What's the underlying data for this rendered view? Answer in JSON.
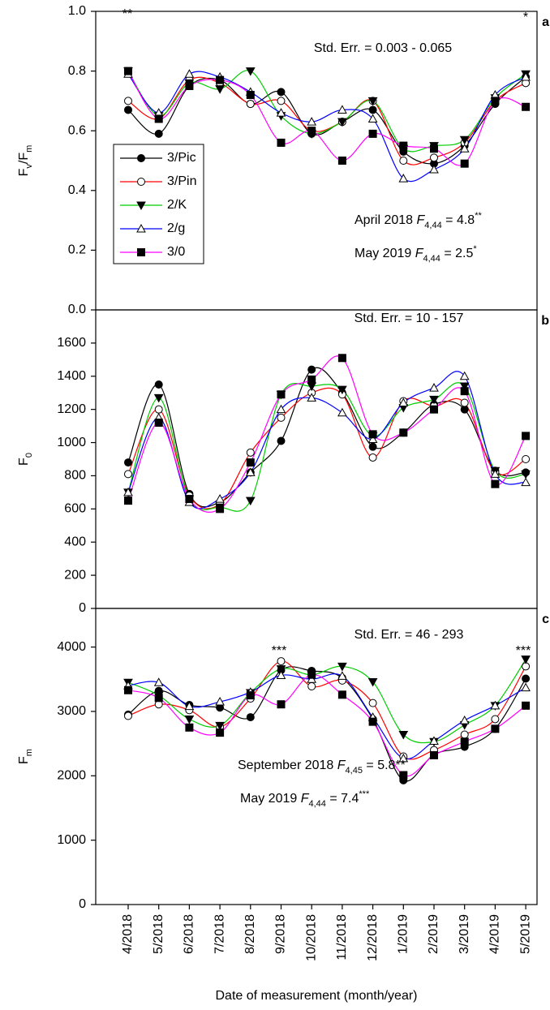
{
  "chart_data": [
    {
      "type": "line",
      "panel_label": "a",
      "ylabel": [
        {
          "text": "F"
        },
        {
          "text": "v",
          "sub": true
        },
        {
          "text": "/F"
        },
        {
          "text": "m",
          "sub": true
        }
      ],
      "ylim": [
        0,
        1
      ],
      "yticks": [
        {
          "value": 0,
          "label": "0.0"
        },
        {
          "value": 0.2,
          "label": "0.2"
        },
        {
          "value": 0.4,
          "label": "0.4"
        },
        {
          "value": 0.6,
          "label": "0.6"
        },
        {
          "value": 0.8,
          "label": "0.8"
        },
        {
          "value": 1,
          "label": "1.0"
        }
      ],
      "legend": "center left",
      "annotations": [
        {
          "parts": [
            {
              "text": "Std. Err. = 0.003 - 0.065"
            }
          ]
        },
        {
          "parts": [
            {
              "text": "April 2018 "
            },
            {
              "text": "F",
              "italic": true
            },
            {
              "text": "4,44",
              "sub": true
            },
            {
              "text": " = 4.8"
            },
            {
              "text": "**",
              "sup": true
            }
          ]
        },
        {
          "parts": [
            {
              "text": "May 2019 "
            },
            {
              "text": "F",
              "italic": true
            },
            {
              "text": "4,44",
              "sub": true
            },
            {
              "text": " = 2.5"
            },
            {
              "text": "*",
              "sup": true
            }
          ]
        },
        {
          "parts": [
            {
              "text": "**"
            }
          ]
        },
        {
          "parts": [
            {
              "text": "*"
            }
          ]
        }
      ],
      "series": [
        {
          "name": "3/Pic",
          "color": "#000000",
          "marker": "circle",
          "marker_color": "#000000",
          "values": [
            0.67,
            0.59,
            0.75,
            0.77,
            0.69,
            0.73,
            0.59,
            0.63,
            0.67,
            0.53,
            0.49,
            0.55,
            0.69,
            0.78
          ]
        },
        {
          "name": "3/Pin",
          "color": "#ff0000",
          "marker": "circle-open",
          "marker_color": "#000000",
          "values": [
            0.7,
            0.64,
            0.77,
            0.76,
            0.69,
            0.7,
            0.6,
            0.63,
            0.7,
            0.5,
            0.51,
            0.56,
            0.7,
            0.76
          ]
        },
        {
          "name": "2/K",
          "color": "#00cc00",
          "marker": "triangle-down",
          "marker_color": "#000000",
          "values": [
            0.8,
            0.65,
            0.76,
            0.74,
            0.8,
            0.65,
            0.59,
            0.63,
            0.7,
            0.54,
            0.55,
            0.57,
            0.71,
            0.79
          ]
        },
        {
          "name": "2/g",
          "color": "#0000ff",
          "marker": "triangle-up-open",
          "marker_color": "#000000",
          "values": [
            0.79,
            0.66,
            0.79,
            0.78,
            0.73,
            0.66,
            0.63,
            0.67,
            0.64,
            0.44,
            0.47,
            0.54,
            0.72,
            0.78
          ]
        },
        {
          "name": "3/0",
          "color": "#ff00ff",
          "marker": "square",
          "marker_color": "#000000",
          "values": [
            0.8,
            0.64,
            0.75,
            0.77,
            0.72,
            0.56,
            0.6,
            0.5,
            0.59,
            0.55,
            0.54,
            0.49,
            0.7,
            0.68
          ]
        }
      ]
    },
    {
      "type": "line",
      "panel_label": "b",
      "ylabel": [
        {
          "text": "F"
        },
        {
          "text": "0",
          "sub": true
        }
      ],
      "ylim": [
        0,
        1800
      ],
      "yticks": [
        0,
        200,
        400,
        600,
        800,
        1000,
        1200,
        1400,
        1600
      ],
      "annotations": [
        {
          "parts": [
            {
              "text": "Std. Err. = 10 - 157"
            }
          ]
        }
      ],
      "series": [
        {
          "color": "#000000",
          "marker": "circle",
          "marker_color": "#000000",
          "values": [
            880,
            1350,
            690,
            640,
            820,
            1010,
            1440,
            1300,
            975,
            1060,
            1230,
            1200,
            830,
            820
          ]
        },
        {
          "color": "#ff0000",
          "marker": "circle-open",
          "marker_color": "#000000",
          "values": [
            810,
            1200,
            680,
            630,
            940,
            1150,
            1300,
            1290,
            910,
            1250,
            1220,
            1240,
            820,
            900
          ]
        },
        {
          "color": "#00cc00",
          "marker": "triangle-down",
          "marker_color": "#000000",
          "values": [
            700,
            1270,
            660,
            610,
            650,
            1290,
            1340,
            1320,
            1040,
            1210,
            1260,
            1340,
            830,
            810
          ]
        },
        {
          "color": "#0000ff",
          "marker": "triangle-up-open",
          "marker_color": "#000000",
          "values": [
            700,
            1150,
            640,
            660,
            820,
            1200,
            1270,
            1180,
            1020,
            1240,
            1330,
            1400,
            810,
            760
          ]
        },
        {
          "color": "#ff00ff",
          "marker": "square",
          "marker_color": "#000000",
          "values": [
            650,
            1120,
            660,
            600,
            880,
            1290,
            1380,
            1510,
            1050,
            1060,
            1200,
            1310,
            750,
            1040
          ]
        }
      ]
    },
    {
      "type": "line",
      "panel_label": "c",
      "ylabel": [
        {
          "text": "F"
        },
        {
          "text": "m",
          "sub": true
        }
      ],
      "xlabel": "Date of measurement (month/year)",
      "categories": [
        "4/2018",
        "5/2018",
        "6/2018",
        "7/2018",
        "8/2018",
        "9/2018",
        "10/2018",
        "11/2018",
        "12/2018",
        "1/2019",
        "2/2019",
        "3/2019",
        "4/2019",
        "5/2019"
      ],
      "ylim": [
        0,
        4600
      ],
      "yticks": [
        0,
        1000,
        2000,
        3000,
        4000
      ],
      "annotations": [
        {
          "parts": [
            {
              "text": "Std. Err. = 46 - 293"
            }
          ]
        },
        {
          "parts": [
            {
              "text": "September 2018 "
            },
            {
              "text": "F",
              "italic": true
            },
            {
              "text": "4,45",
              "sub": true
            },
            {
              "text": " = 5.8**"
            }
          ]
        },
        {
          "parts": [
            {
              "text": "May 2019 "
            },
            {
              "text": "F",
              "italic": true
            },
            {
              "text": "4,44",
              "sub": true
            },
            {
              "text": " = 7.4"
            },
            {
              "text": "***",
              "sup": true
            }
          ]
        },
        {
          "parts": [
            {
              "text": "***"
            }
          ]
        },
        {
          "parts": [
            {
              "text": "***"
            }
          ]
        }
      ],
      "series": [
        {
          "color": "#000000",
          "marker": "circle",
          "marker_color": "#000000",
          "values": [
            2950,
            3320,
            3100,
            3060,
            2910,
            3640,
            3630,
            3520,
            2880,
            1930,
            2330,
            2450,
            2730,
            3510
          ]
        },
        {
          "color": "#ff0000",
          "marker": "circle-open",
          "marker_color": "#000000",
          "values": [
            2930,
            3110,
            3020,
            2760,
            3200,
            3780,
            3390,
            3480,
            3130,
            2300,
            2400,
            2640,
            2880,
            3700
          ]
        },
        {
          "color": "#00cc00",
          "marker": "triangle-down",
          "marker_color": "#000000",
          "values": [
            3450,
            3250,
            2880,
            2780,
            3290,
            3660,
            3570,
            3700,
            3460,
            2640,
            2530,
            2790,
            3090,
            3810
          ]
        },
        {
          "color": "#0000ff",
          "marker": "triangle-up-open",
          "marker_color": "#000000",
          "values": [
            3400,
            3450,
            3080,
            3150,
            3300,
            3560,
            3500,
            3550,
            2910,
            2270,
            2540,
            2860,
            3090,
            3370
          ]
        },
        {
          "color": "#ff00ff",
          "marker": "square",
          "marker_color": "#000000",
          "values": [
            3330,
            3210,
            2750,
            2670,
            3250,
            3110,
            3570,
            3260,
            2840,
            2010,
            2320,
            2530,
            2730,
            3090
          ]
        }
      ]
    }
  ]
}
